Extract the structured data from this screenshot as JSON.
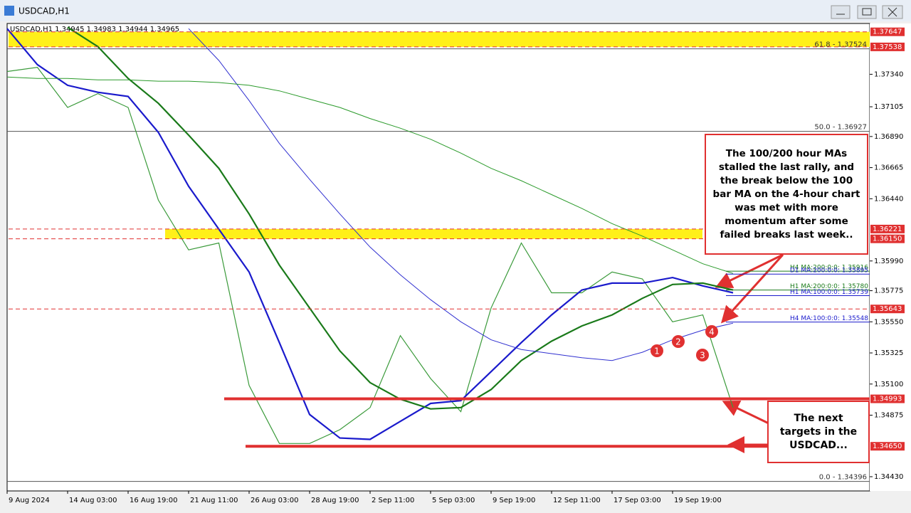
{
  "chart_data": {
    "type": "line",
    "title": "USDCAD,H1",
    "subtitle": "USDCAD,H1  1.34945 1.34983 1.34944 1.34965",
    "categories": [
      "9 Aug 2024",
      null,
      "14 Aug 03:00",
      null,
      "16 Aug 19:00",
      null,
      "21 Aug 11:00",
      null,
      "26 Aug 03:00",
      null,
      "28 Aug 19:00",
      null,
      "2 Sep 11:00",
      null,
      "5 Sep 03:00",
      null,
      "9 Sep 19:00",
      null,
      "12 Sep 11:00",
      null,
      "17 Sep 03:00",
      null,
      "19 Sep 19:00",
      null,
      null
    ],
    "series": [
      {
        "color": "#3a9a3a",
        "values": [
          1.3736,
          1.3739,
          1.371,
          1.372,
          1.371,
          1.3643,
          1.3607,
          1.3612,
          1.3509,
          1.3467,
          1.3467,
          1.3477,
          1.3493,
          1.3545,
          1.3514,
          1.349,
          1.3565,
          1.3612,
          1.3576,
          1.3576,
          1.3591,
          1.3586,
          1.3555,
          1.356,
          1.3493
        ]
      },
      {
        "color": "#1a1acc",
        "values": [
          1.3767,
          1.3741,
          1.3726,
          1.3721,
          1.3718,
          1.3692,
          1.3653,
          1.3622,
          1.3591,
          1.354,
          1.3488,
          1.3471,
          1.347,
          1.3483,
          1.3496,
          1.3498,
          1.3519,
          1.354,
          1.356,
          1.3578,
          1.3583,
          1.3583,
          1.3587,
          1.3581,
          1.3576
        ]
      },
      {
        "color": "#1a7a1a",
        "values": [
          null,
          null,
          1.3768,
          1.3754,
          1.3731,
          1.3713,
          1.369,
          1.3666,
          1.3633,
          1.3596,
          1.3565,
          1.3534,
          1.3511,
          1.3499,
          1.3492,
          1.3493,
          1.3506,
          1.3527,
          1.3541,
          1.3552,
          1.356,
          1.3572,
          1.3582,
          1.3583,
          1.3578
        ]
      },
      {
        "color": "#3030d0",
        "values": [
          null,
          null,
          null,
          null,
          null,
          null,
          1.3767,
          1.3744,
          1.3715,
          1.3684,
          1.3658,
          1.3633,
          1.3609,
          1.3589,
          1.3571,
          1.3555,
          1.3542,
          1.3535,
          1.3532,
          1.3529,
          1.3527,
          1.3533,
          1.3542,
          1.3549,
          1.3554
        ]
      },
      {
        "color": "#2a9a2a",
        "values": [
          1.3732,
          1.3731,
          1.3731,
          1.373,
          1.373,
          1.3729,
          1.3729,
          1.3728,
          1.3726,
          1.3722,
          1.3716,
          1.371,
          1.3702,
          1.3695,
          1.3687,
          1.3677,
          1.3666,
          1.3657,
          1.3647,
          1.3637,
          1.3626,
          1.3617,
          1.3607,
          1.3597,
          1.359
        ]
      }
    ],
    "ylim": [
      1.34327,
      1.37697
    ],
    "yticks": [
      {
        "value": 1.3734,
        "label": "1.37340"
      },
      1.37105,
      {
        "value": 1.3689,
        "label": "1.36890"
      },
      1.36665,
      {
        "value": 1.3644,
        "label": "1.36440"
      },
      {
        "value": 1.3599,
        "label": "1.35990"
      },
      1.35775,
      {
        "value": 1.3555,
        "label": "1.35550"
      },
      1.35325,
      {
        "value": 1.351,
        "label": "1.35100"
      },
      1.34875,
      {
        "value": 1.3443,
        "label": "1.34430"
      }
    ],
    "levels": [
      1.37647,
      1.37538,
      1.36221,
      {
        "value": 1.3615,
        "label": "1.36150"
      },
      1.35643,
      1.34993,
      {
        "value": 1.3465,
        "label": "1.34650"
      }
    ],
    "zones": [
      {
        "from": 1.37538,
        "to": 1.37647
      },
      {
        "from": 1.3615,
        "to": 1.36221
      }
    ],
    "fib_levels": [
      {
        "value": 1.37524,
        "label": "61.8 - 1.37524"
      },
      {
        "value": 1.36927,
        "label": "50.0 - 1.36927"
      },
      {
        "value": 1.34396,
        "label": "0.0 - 1.34396"
      }
    ],
    "ma_labels": [
      {
        "value": 1.35916,
        "label": "H4 MA:200:0:0: 1.35916"
      },
      {
        "value": 1.35895,
        "label": "D1 MA:200:0:0: 1.35895"
      },
      {
        "value": 1.3578,
        "label": "H1 MA:200:0:0: 1.35780"
      },
      {
        "value": 1.35739,
        "label": "H1 MA:100:0:0: 1.35739"
      },
      {
        "value": 1.35548,
        "label": "H4 MA:100:0:0: 1.35548"
      }
    ],
    "annotations": [
      "The 100/200 hour MAs stalled the last rally, and the break below the 100 bar MA on the 4-hour chart was met with more momentum after some failed breaks last week..",
      "The next targets in the USDCAD...",
      "1",
      "2",
      "3",
      "4"
    ]
  }
}
